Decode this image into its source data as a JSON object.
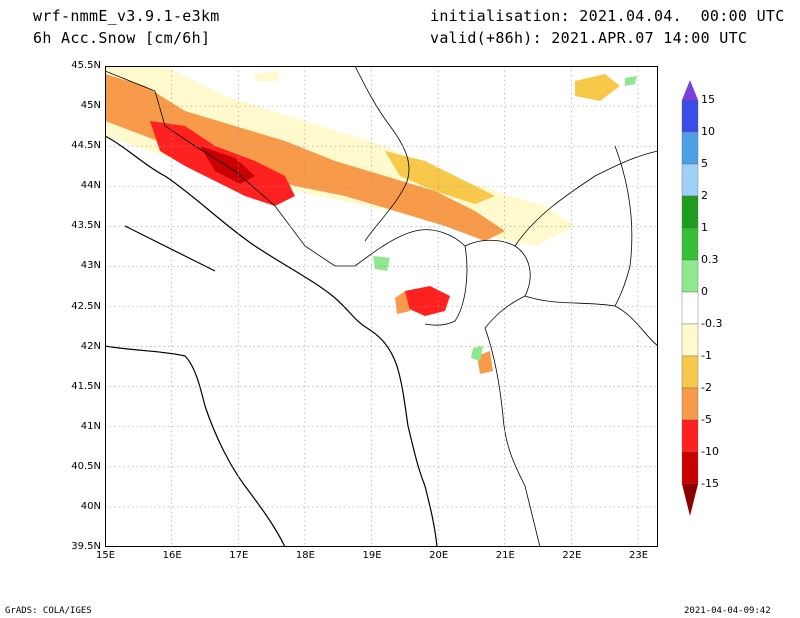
{
  "header": {
    "model": "wrf-nmmE_v3.9.1-e3km",
    "field": "6h Acc.Snow [cm/6h]",
    "init": "initialisation: 2021.04.04.  00:00 UTC",
    "valid": "valid(+86h): 2021.APR.07 14:00 UTC"
  },
  "map": {
    "lat_labels": [
      "45.5N",
      "45N",
      "44.5N",
      "44N",
      "43.5N",
      "43N",
      "42.5N",
      "42N",
      "41.5N",
      "41N",
      "40.5N",
      "40N",
      "39.5N"
    ],
    "lon_labels": [
      "15E",
      "16E",
      "17E",
      "18E",
      "19E",
      "20E",
      "21E",
      "22E",
      "23E"
    ],
    "grid": true
  },
  "legend": {
    "labels": [
      "15",
      "10",
      "5",
      "2",
      "1",
      "0.3",
      "0",
      "-0.3",
      "-1",
      "-2",
      "-5",
      "-10",
      "-15"
    ],
    "colors": [
      "#7b3fe0",
      "#3b4de8",
      "#4d9fe8",
      "#9fd0f5",
      "#1f9b1f",
      "#35c035",
      "#8ee88e",
      "#ffffff",
      "#fffacd",
      "#f7c84a",
      "#f79b4a",
      "#ff2020",
      "#c80000",
      "#8b0000"
    ]
  },
  "footer": {
    "left": "GrADS: COLA/IGES",
    "right": "2021-04-04-09:42"
  }
}
